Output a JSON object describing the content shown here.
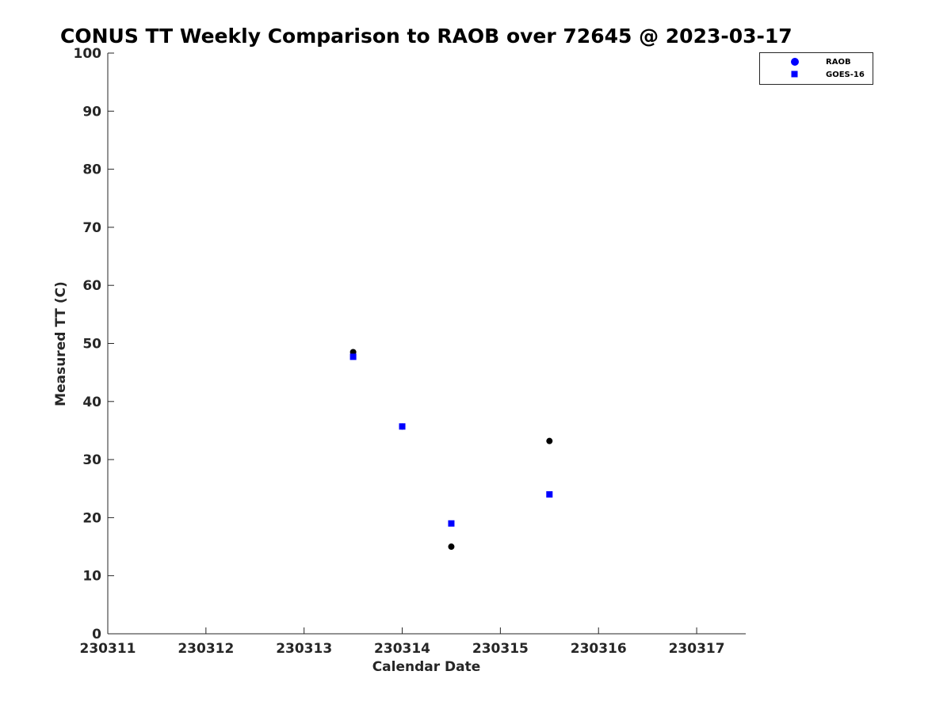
{
  "chart_data": {
    "type": "scatter",
    "title": "CONUS TT Weekly Comparison to RAOB over 72645 @ 2023-03-17",
    "xlabel": "Calendar Date",
    "ylabel": "Measured TT (C)",
    "xlim": [
      230311,
      230317.5
    ],
    "ylim": [
      0,
      100
    ],
    "xticks": [
      230311,
      230312,
      230313,
      230314,
      230315,
      230316,
      230317
    ],
    "xtick_labels": [
      "230311",
      "230312",
      "230313",
      "230314",
      "230315",
      "230316",
      "230317"
    ],
    "yticks": [
      0,
      10,
      20,
      30,
      40,
      50,
      60,
      70,
      80,
      90,
      100
    ],
    "ytick_labels": [
      "0",
      "10",
      "20",
      "30",
      "40",
      "50",
      "60",
      "70",
      "80",
      "90",
      "100"
    ],
    "grid": false,
    "legend_position": "outside-top-right",
    "series": [
      {
        "name": "RAOB",
        "marker": "circle",
        "color": "#000000",
        "legend_color": "#0000ff",
        "x": [
          230313.5,
          230314.0,
          230314.5,
          230315.5
        ],
        "y": [
          48.5,
          35.7,
          15.0,
          33.2
        ]
      },
      {
        "name": "GOES-16",
        "marker": "square",
        "color": "#0000ff",
        "legend_color": "#0000ff",
        "x": [
          230313.5,
          230314.0,
          230314.5,
          230315.5
        ],
        "y": [
          47.7,
          35.7,
          19.0,
          24.0
        ]
      }
    ]
  }
}
